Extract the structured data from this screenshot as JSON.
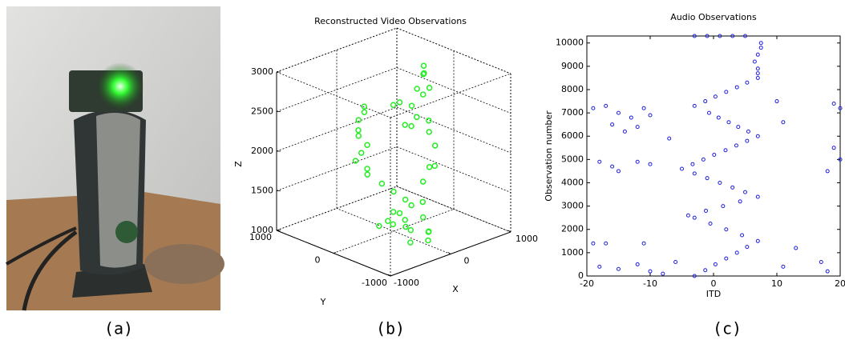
{
  "captions": [
    "(a)",
    "(b)",
    "(c)"
  ],
  "chart_data": [
    {
      "type": "scatter3d",
      "title": "Reconstructed Video Observations",
      "x_label": "X",
      "y_label": "Y",
      "z_label": "Z",
      "color": "#22ee22",
      "xlim": [
        -1000,
        1000
      ],
      "ylim": [
        -1000,
        1000
      ],
      "zlim": [
        1000,
        3000
      ],
      "xticks": [
        -1000,
        0,
        1000
      ],
      "yticks": [
        -1000,
        0,
        1000
      ],
      "zticks": [
        1000,
        1500,
        2000,
        2500,
        3000
      ],
      "grid": true,
      "x": [
        -300,
        -250,
        -300,
        -350,
        -300,
        -250,
        -300,
        -350,
        -250,
        -200,
        -100,
        0,
        100,
        200,
        100,
        0,
        -100,
        200,
        200,
        400,
        500,
        300,
        500,
        600,
        100,
        300,
        200,
        400,
        0,
        -100,
        100,
        300,
        500,
        400,
        300,
        200,
        500,
        -200,
        0,
        200,
        300,
        -100,
        100,
        -100,
        300,
        0
      ],
      "y": [
        200,
        250,
        300,
        250,
        300,
        200,
        250,
        300,
        200,
        250,
        100,
        0,
        -100,
        -100,
        0,
        100,
        150,
        0,
        -200,
        -100,
        0,
        -200,
        -100,
        100,
        -300,
        -300,
        -100,
        -200,
        -200,
        -100,
        0,
        0,
        -200,
        -300,
        -200,
        -300,
        -100,
        -200,
        -300,
        -400,
        -200,
        -100,
        -500,
        -400,
        -300,
        -200
      ],
      "z": [
        2600,
        2500,
        2400,
        2300,
        2200,
        2100,
        2000,
        1900,
        1800,
        1700,
        1600,
        1500,
        1400,
        1300,
        1200,
        1100,
        1050,
        1000,
        2800,
        2900,
        2950,
        2700,
        2700,
        2800,
        2500,
        2400,
        2300,
        2200,
        2400,
        2650,
        2600,
        2500,
        2000,
        1800,
        1600,
        1400,
        1700,
        1200,
        1100,
        1050,
        1150,
        1300,
        1000,
        1000,
        1000,
        1200
      ]
    },
    {
      "type": "scatter",
      "title": "Audio Observations",
      "x_label": "ITD",
      "y_label": "Observation number",
      "color": "#1f1fdd",
      "xlim": [
        -20,
        20
      ],
      "ylim": [
        0,
        10300
      ],
      "xticks": [
        -20,
        -10,
        0,
        10,
        20
      ],
      "yticks": [
        0,
        1000,
        2000,
        3000,
        4000,
        5000,
        6000,
        7000,
        8000,
        9000,
        10000
      ],
      "x": [
        -3,
        -1.3,
        0.3,
        2,
        3.7,
        5.3,
        7,
        4.5,
        2,
        -0.5,
        -3,
        -4,
        -1.2,
        1.5,
        4.2,
        7,
        5,
        3,
        1,
        -1,
        -3,
        -5,
        -3.3,
        -1.6,
        0.1,
        1.9,
        3.6,
        5.3,
        7,
        5.5,
        3.9,
        2.4,
        0.8,
        -0.7,
        -3,
        -1.3,
        0.3,
        2,
        3.7,
        5.3,
        7,
        7,
        7,
        6.5,
        7,
        7.5,
        7.5,
        5,
        -3,
        -1,
        1,
        3,
        -19,
        -17,
        -15,
        -13,
        -11,
        -16,
        -14,
        -12,
        -10,
        -18,
        -16,
        -15,
        -12,
        -10,
        -19,
        -17,
        -11,
        -18,
        -15,
        -12,
        -10,
        -7,
        -6,
        -8,
        11,
        10,
        18,
        19,
        20,
        20,
        19,
        17,
        13,
        18,
        11
      ],
      "values": [
        0,
        250,
        500,
        750,
        1000,
        1250,
        1500,
        1750,
        2000,
        2250,
        2500,
        2600,
        2800,
        3000,
        3200,
        3400,
        3600,
        3800,
        4000,
        4200,
        4400,
        4600,
        4800,
        5000,
        5200,
        5400,
        5600,
        5800,
        6000,
        6200,
        6400,
        6600,
        6800,
        7000,
        7300,
        7500,
        7700,
        7900,
        8100,
        8300,
        8500,
        8700,
        8900,
        9200,
        9500,
        9800,
        10000,
        10300,
        10300,
        10300,
        10300,
        10300,
        7200,
        7300,
        7000,
        6800,
        7200,
        6500,
        6200,
        6400,
        6900,
        4900,
        4700,
        4500,
        4900,
        4800,
        1400,
        1400,
        1400,
        400,
        300,
        500,
        200,
        5900,
        600,
        100,
        6600,
        7500,
        4500,
        7400,
        7200,
        5000,
        5500,
        600,
        1200,
        200,
        400
      ]
    }
  ]
}
